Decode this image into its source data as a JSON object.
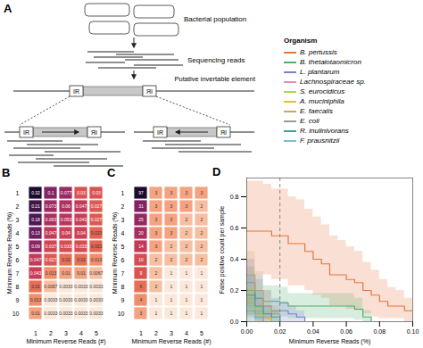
{
  "chart_data": [
    {
      "type": "diagram",
      "title": "A",
      "labels": {
        "population": "Bacterial population",
        "reads": "Sequencing reads",
        "element": "Putative invertable element",
        "ir": "IR"
      }
    },
    {
      "type": "heatmap",
      "title": "B",
      "x": [
        1,
        2,
        3,
        4,
        5
      ],
      "y": [
        1,
        2,
        3,
        4,
        5,
        6,
        7,
        8,
        9,
        10
      ],
      "xlabel": "Minimum Reverse Reads (#)",
      "ylabel": "Minimum Reverse Reads (%)",
      "data_labels": true,
      "values": [
        [
          0.32,
          0.1,
          0.077,
          0.03,
          0.03
        ],
        [
          0.21,
          0.073,
          0.06,
          0.047,
          0.027
        ],
        [
          0.18,
          0.063,
          0.053,
          0.043,
          0.027
        ],
        [
          0.13,
          0.047,
          0.04,
          0.04,
          0.023
        ],
        [
          0.09,
          0.037,
          0.033,
          0.033,
          0.023
        ],
        [
          0.047,
          0.027,
          0.02,
          0.02,
          0.013
        ],
        [
          0.043,
          0.013,
          0.01,
          0.01,
          0.0067
        ],
        [
          0.02,
          0.0067,
          0.0033,
          0.0033,
          0.0033
        ],
        [
          0.013,
          0.0033,
          0.0033,
          0.0033,
          0.0033
        ],
        [
          0.01,
          0.0033,
          0.0033,
          0.0033,
          0.0033
        ]
      ]
    },
    {
      "type": "heatmap",
      "title": "C",
      "x": [
        1,
        2,
        3,
        4,
        5
      ],
      "y": [
        1,
        2,
        3,
        4,
        5,
        6,
        7,
        8,
        9,
        10
      ],
      "xlabel": "Minimum Reverse Reads (#)",
      "ylabel": "Minimum Reverse Reads (%)",
      "data_labels": true,
      "values": [
        [
          97,
          3,
          3,
          3,
          3
        ],
        [
          31,
          3,
          3,
          3,
          2
        ],
        [
          25,
          3,
          3,
          2,
          2
        ],
        [
          20,
          3,
          3,
          2,
          2
        ],
        [
          14,
          3,
          2,
          2,
          2
        ],
        [
          10,
          2,
          2,
          2,
          2
        ],
        [
          9,
          2,
          1,
          1,
          1
        ],
        [
          6,
          2,
          1,
          1,
          1
        ],
        [
          4,
          1,
          1,
          1,
          1
        ],
        [
          3,
          1,
          1,
          1,
          1
        ]
      ]
    },
    {
      "type": "line",
      "title": "D",
      "xlabel": "Minimum Reverse Reads (%)",
      "ylabel": "False positive count per sample",
      "xlim": [
        0,
        0.1
      ],
      "ylim": [
        0,
        0.92
      ],
      "xticks": [
        {
          "value": 0,
          "label": "0.00"
        },
        {
          "value": 0.02,
          "label": "0.02"
        },
        {
          "value": 0.04,
          "label": "0.04"
        },
        {
          "value": 0.06,
          "label": "0.06"
        },
        {
          "value": 0.08,
          "label": "0.08"
        },
        {
          "value": 0.1,
          "label": "0.10"
        }
      ],
      "yticks": [
        {
          "value": 0,
          "label": "0.0"
        },
        0.2,
        0.4,
        0.6,
        0.8
      ],
      "legend": "above",
      "legend_title": "Organism",
      "vline": 0.02,
      "x": [
        0,
        0.005,
        0.01,
        0.015,
        0.02,
        0.025,
        0.03,
        0.035,
        0.04,
        0.045,
        0.05,
        0.055,
        0.06,
        0.065,
        0.07,
        0.075,
        0.08,
        0.085,
        0.09,
        0.095,
        0.1
      ],
      "series": [
        {
          "name": "B. pertussis",
          "color": "#e8743b",
          "values": [
            0.58,
            0.58,
            0.58,
            0.55,
            0.55,
            0.5,
            0.5,
            0.45,
            0.4,
            0.37,
            0.3,
            0.3,
            0.27,
            0.25,
            0.2,
            0.17,
            0.13,
            0.1,
            0.1,
            0.07,
            0.07
          ],
          "lower": [
            0.3,
            0.3,
            0.3,
            0.27,
            0.27,
            0.23,
            0.23,
            0.2,
            0.17,
            0.15,
            0.1,
            0.1,
            0.08,
            0.07,
            0.05,
            0.03,
            0.02,
            0.02,
            0.02,
            0,
            0
          ],
          "upper": [
            0.9,
            0.9,
            0.88,
            0.85,
            0.85,
            0.8,
            0.78,
            0.72,
            0.67,
            0.62,
            0.55,
            0.52,
            0.48,
            0.45,
            0.38,
            0.33,
            0.27,
            0.22,
            0.2,
            0.15,
            0.15
          ]
        },
        {
          "name": "B. thetaiotaomicron",
          "color": "#4daf6a",
          "values": [
            0.2,
            0.15,
            0.13,
            0.13,
            0.12,
            0.1,
            0.1,
            0.1,
            0.1,
            0.1,
            0.1,
            0.1,
            0.1,
            0.08,
            0.03,
            0,
            0,
            0,
            0,
            0,
            0
          ],
          "lower": [
            0.08,
            0.05,
            0.04,
            0.04,
            0.03,
            0.02,
            0.02,
            0.02,
            0.02,
            0.02,
            0.02,
            0.02,
            0.02,
            0.01,
            0,
            0,
            0,
            0,
            0,
            0,
            0
          ],
          "upper": [
            0.35,
            0.27,
            0.23,
            0.23,
            0.22,
            0.18,
            0.18,
            0.18,
            0.18,
            0.18,
            0.18,
            0.18,
            0.18,
            0.15,
            0.07,
            0,
            0,
            0,
            0,
            0,
            0
          ]
        },
        {
          "name": "L. plantarum",
          "color": "#7a7fd6",
          "values": [
            0.25,
            0.15,
            0.1,
            0.07,
            0.07,
            0.05,
            0.03,
            0,
            0,
            0,
            0,
            0,
            0,
            0,
            0,
            0,
            0,
            0,
            0,
            0,
            0
          ],
          "lower": [
            0.1,
            0.05,
            0.02,
            0,
            0,
            0,
            0,
            0,
            0,
            0,
            0,
            0,
            0,
            0,
            0,
            0,
            0,
            0,
            0,
            0,
            0
          ],
          "upper": [
            0.4,
            0.3,
            0.2,
            0.15,
            0.13,
            0.1,
            0.07,
            0,
            0,
            0,
            0,
            0,
            0,
            0,
            0,
            0,
            0,
            0,
            0,
            0,
            0
          ]
        },
        {
          "name": "Lachnospiraceae sp.",
          "color": "#e78ac3",
          "values": [
            0.15,
            0.07,
            0.03,
            0,
            0,
            0,
            0,
            0,
            0,
            0,
            0,
            0,
            0,
            0,
            0,
            0,
            0,
            0,
            0,
            0,
            0
          ],
          "lower": [
            0.03,
            0,
            0,
            0,
            0,
            0,
            0,
            0,
            0,
            0,
            0,
            0,
            0,
            0,
            0,
            0,
            0,
            0,
            0,
            0,
            0
          ],
          "upper": [
            0.3,
            0.15,
            0.07,
            0,
            0,
            0,
            0,
            0,
            0,
            0,
            0,
            0,
            0,
            0,
            0,
            0,
            0,
            0,
            0,
            0,
            0
          ]
        },
        {
          "name": "S. eurocidicus",
          "color": "#a6d854",
          "values": [
            0.1,
            0.05,
            0,
            0,
            0,
            0,
            0,
            0,
            0,
            0,
            0,
            0,
            0,
            0,
            0,
            0,
            0,
            0,
            0,
            0,
            0
          ],
          "lower": [
            0.02,
            0,
            0,
            0,
            0,
            0,
            0,
            0,
            0,
            0,
            0,
            0,
            0,
            0,
            0,
            0,
            0,
            0,
            0,
            0,
            0
          ],
          "upper": [
            0.2,
            0.1,
            0,
            0,
            0,
            0,
            0,
            0,
            0,
            0,
            0,
            0,
            0,
            0,
            0,
            0,
            0,
            0,
            0,
            0,
            0
          ]
        },
        {
          "name": "A. muciniphila",
          "color": "#e6c229",
          "values": [
            0.12,
            0.05,
            0.02,
            0,
            0,
            0,
            0,
            0,
            0,
            0,
            0,
            0,
            0,
            0,
            0,
            0,
            0,
            0,
            0,
            0,
            0
          ],
          "lower": [
            0.03,
            0,
            0,
            0,
            0,
            0,
            0,
            0,
            0,
            0,
            0,
            0,
            0,
            0,
            0,
            0,
            0,
            0,
            0,
            0,
            0
          ],
          "upper": [
            0.22,
            0.1,
            0.05,
            0,
            0,
            0,
            0,
            0,
            0,
            0,
            0,
            0,
            0,
            0,
            0,
            0,
            0,
            0,
            0,
            0,
            0
          ]
        },
        {
          "name": "E. faecalis",
          "color": "#c9a46a",
          "values": [
            0.3,
            0.2,
            0.1,
            0.05,
            0,
            0,
            0,
            0,
            0,
            0,
            0,
            0,
            0,
            0,
            0,
            0,
            0,
            0,
            0,
            0,
            0
          ],
          "lower": [
            0.15,
            0.08,
            0.02,
            0,
            0,
            0,
            0,
            0,
            0,
            0,
            0,
            0,
            0,
            0,
            0,
            0,
            0,
            0,
            0,
            0,
            0
          ],
          "upper": [
            0.45,
            0.32,
            0.2,
            0.1,
            0,
            0,
            0,
            0,
            0,
            0,
            0,
            0,
            0,
            0,
            0,
            0,
            0,
            0,
            0,
            0,
            0
          ]
        },
        {
          "name": "E. coli",
          "color": "#9a9a9a",
          "values": [
            0.07,
            0.03,
            0,
            0,
            0,
            0,
            0,
            0,
            0,
            0,
            0,
            0,
            0,
            0,
            0,
            0,
            0,
            0,
            0,
            0,
            0
          ],
          "lower": [
            0,
            0,
            0,
            0,
            0,
            0,
            0,
            0,
            0,
            0,
            0,
            0,
            0,
            0,
            0,
            0,
            0,
            0,
            0,
            0,
            0
          ],
          "upper": [
            0.15,
            0.07,
            0,
            0,
            0,
            0,
            0,
            0,
            0,
            0,
            0,
            0,
            0,
            0,
            0,
            0,
            0,
            0,
            0,
            0,
            0
          ]
        },
        {
          "name": "R. inulinivorans",
          "color": "#3aa39a",
          "values": [
            0.17,
            0.1,
            0.05,
            0.03,
            0,
            0,
            0,
            0,
            0,
            0,
            0,
            0,
            0,
            0,
            0,
            0,
            0,
            0,
            0,
            0,
            0
          ],
          "lower": [
            0.05,
            0.02,
            0,
            0,
            0,
            0,
            0,
            0,
            0,
            0,
            0,
            0,
            0,
            0,
            0,
            0,
            0,
            0,
            0,
            0,
            0
          ],
          "upper": [
            0.3,
            0.2,
            0.1,
            0.07,
            0,
            0,
            0,
            0,
            0,
            0,
            0,
            0,
            0,
            0,
            0,
            0,
            0,
            0,
            0,
            0,
            0
          ]
        },
        {
          "name": "F. prausnitzii",
          "color": "#7fb9e0",
          "values": [
            0.05,
            0.02,
            0,
            0,
            0,
            0,
            0,
            0,
            0,
            0,
            0,
            0,
            0,
            0,
            0,
            0,
            0,
            0,
            0,
            0,
            0
          ],
          "lower": [
            0,
            0,
            0,
            0,
            0,
            0,
            0,
            0,
            0,
            0,
            0,
            0,
            0,
            0,
            0,
            0,
            0,
            0,
            0,
            0,
            0
          ],
          "upper": [
            0.12,
            0.05,
            0,
            0,
            0,
            0,
            0,
            0,
            0,
            0,
            0,
            0,
            0,
            0,
            0,
            0,
            0,
            0,
            0,
            0,
            0
          ]
        }
      ]
    }
  ]
}
